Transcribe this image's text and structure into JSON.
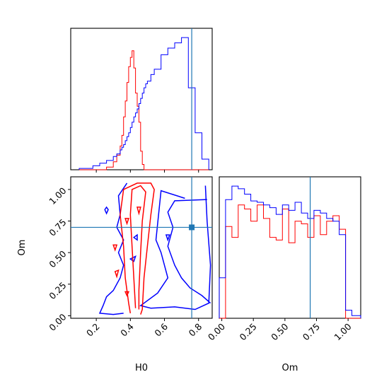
{
  "chart_data": {
    "type": "corner",
    "parameters": [
      "H0",
      "Om"
    ],
    "colors": {
      "blue_sample": "#0000ff",
      "red_sample": "#ff0000",
      "truth": "#1f77b4"
    },
    "truth": {
      "H0": 0.76,
      "Om": 0.7
    },
    "axes": {
      "H0": {
        "range": [
          0.05,
          0.88
        ],
        "ticks": [
          0.2,
          0.4,
          0.6,
          0.8
        ],
        "tick_labels": [
          "0.2",
          "0.4",
          "0.6",
          "0.8"
        ]
      },
      "Om": {
        "range": [
          -0.02,
          1.1
        ],
        "ticks": [
          0.0,
          0.25,
          0.5,
          0.75,
          1.0
        ],
        "tick_labels": [
          "0.00",
          "0.25",
          "0.50",
          "0.75",
          "1.00"
        ]
      }
    },
    "xlabel_H0": "H0",
    "xlabel_Om": "Om",
    "ylabel_Om": "Om",
    "hist_H0": {
      "edges": [
        0.1,
        0.14,
        0.18,
        0.22,
        0.26,
        0.3,
        0.32,
        0.34,
        0.35,
        0.36,
        0.37,
        0.38,
        0.39,
        0.4,
        0.41,
        0.42,
        0.43,
        0.44,
        0.45,
        0.46,
        0.47,
        0.48,
        0.49,
        0.5,
        0.52,
        0.54,
        0.58,
        0.62,
        0.66,
        0.7,
        0.74,
        0.78,
        0.82,
        0.86
      ],
      "blue": [
        0.01,
        0.01,
        0.03,
        0.05,
        0.07,
        0.1,
        0.12,
        0.15,
        0.17,
        0.19,
        0.22,
        0.25,
        0.28,
        0.32,
        0.36,
        0.4,
        0.43,
        0.46,
        0.5,
        0.54,
        0.58,
        0.62,
        0.65,
        0.67,
        0.72,
        0.76,
        0.87,
        0.92,
        0.96,
        1.0,
        0.62,
        0.28,
        0.08
      ],
      "red": [
        0,
        0,
        0,
        0,
        0.02,
        0.06,
        0.11,
        0.18,
        0.26,
        0.4,
        0.52,
        0.66,
        0.78,
        0.85,
        0.9,
        0.77,
        0.58,
        0.48,
        0.36,
        0.14,
        0.04,
        0,
        0,
        0,
        0,
        0,
        0,
        0,
        0,
        0,
        0,
        0,
        0
      ]
    },
    "hist_Om": {
      "edges": [
        -0.02,
        0.03,
        0.08,
        0.13,
        0.18,
        0.23,
        0.28,
        0.33,
        0.38,
        0.43,
        0.48,
        0.53,
        0.58,
        0.63,
        0.68,
        0.73,
        0.78,
        0.83,
        0.88,
        0.93,
        0.98,
        1.03,
        1.1
      ],
      "blue": [
        0.3,
        0.88,
        0.98,
        0.96,
        0.92,
        0.87,
        0.86,
        0.84,
        0.82,
        0.77,
        0.84,
        0.8,
        0.86,
        0.78,
        0.74,
        0.8,
        0.78,
        0.74,
        0.72,
        0.62,
        0.06,
        0.02
      ],
      "red": [
        0,
        0.68,
        0.6,
        0.84,
        0.81,
        0.72,
        0.84,
        0.74,
        0.6,
        0.58,
        0.81,
        0.56,
        0.72,
        0.7,
        0.6,
        0.76,
        0.62,
        0.72,
        0.76,
        0.66,
        0,
        0
      ]
    },
    "contours": [
      {
        "series": "blue",
        "level": "outer",
        "points": [
          [
            0.72,
            0.93
          ],
          [
            0.58,
            0.99
          ],
          [
            0.55,
            0.6
          ],
          [
            0.58,
            0.5
          ],
          [
            0.62,
            0.3
          ],
          [
            0.56,
            0.18
          ],
          [
            0.46,
            0.08
          ],
          [
            0.52,
            0.06
          ],
          [
            0.66,
            0.07
          ],
          [
            0.78,
            0.05
          ],
          [
            0.86,
            0.1
          ],
          [
            0.87,
            0.4
          ],
          [
            0.85,
            0.75
          ],
          [
            0.84,
            1.03
          ]
        ],
        "closed": false
      },
      {
        "series": "blue",
        "level": "inner",
        "points": [
          [
            0.85,
            0.92
          ],
          [
            0.66,
            0.91
          ],
          [
            0.62,
            0.82
          ],
          [
            0.65,
            0.7
          ],
          [
            0.62,
            0.55
          ],
          [
            0.66,
            0.4
          ],
          [
            0.7,
            0.3
          ],
          [
            0.75,
            0.22
          ],
          [
            0.82,
            0.16
          ],
          [
            0.87,
            0.1
          ]
        ],
        "closed": false
      },
      {
        "series": "blue",
        "level": "outer",
        "points": [
          [
            0.38,
            1.05
          ],
          [
            0.33,
            0.95
          ],
          [
            0.34,
            0.8
          ],
          [
            0.32,
            0.7
          ],
          [
            0.36,
            0.6
          ],
          [
            0.33,
            0.5
          ],
          [
            0.36,
            0.4
          ],
          [
            0.34,
            0.3
          ],
          [
            0.3,
            0.2
          ],
          [
            0.26,
            0.15
          ],
          [
            0.24,
            0.08
          ],
          [
            0.22,
            0.02
          ],
          [
            0.3,
            0.01
          ],
          [
            0.36,
            0.02
          ]
        ],
        "closed": false
      },
      {
        "series": "blue",
        "level": "island",
        "points": [
          [
            0.25,
            0.84
          ],
          [
            0.26,
            0.81
          ],
          [
            0.27,
            0.84
          ],
          [
            0.26,
            0.86
          ]
        ],
        "closed": true
      },
      {
        "series": "blue",
        "level": "island",
        "points": [
          [
            0.42,
            0.62
          ],
          [
            0.44,
            0.6
          ],
          [
            0.44,
            0.64
          ]
        ],
        "closed": true
      },
      {
        "series": "blue",
        "level": "island",
        "points": [
          [
            0.4,
            0.45
          ],
          [
            0.42,
            0.43
          ],
          [
            0.43,
            0.47
          ]
        ],
        "closed": true
      },
      {
        "series": "blue",
        "level": "island",
        "points": [
          [
            0.61,
            0.64
          ],
          [
            0.62,
            0.6
          ],
          [
            0.63,
            0.64
          ]
        ],
        "closed": true
      },
      {
        "series": "red",
        "level": "outer",
        "points": [
          [
            0.4,
            0.02
          ],
          [
            0.39,
            0.1
          ],
          [
            0.37,
            0.3
          ],
          [
            0.36,
            0.55
          ],
          [
            0.34,
            0.8
          ],
          [
            0.36,
            1.0
          ],
          [
            0.44,
            1.05
          ],
          [
            0.52,
            1.05
          ],
          [
            0.54,
            1.0
          ],
          [
            0.52,
            0.8
          ],
          [
            0.5,
            0.55
          ],
          [
            0.48,
            0.3
          ],
          [
            0.47,
            0.05
          ],
          [
            0.46,
            0.01
          ]
        ],
        "closed": false
      },
      {
        "series": "red",
        "level": "inner",
        "points": [
          [
            0.43,
            0.06
          ],
          [
            0.42,
            0.3
          ],
          [
            0.41,
            0.55
          ],
          [
            0.4,
            0.8
          ],
          [
            0.41,
            1.0
          ],
          [
            0.46,
            1.03
          ],
          [
            0.49,
            0.98
          ],
          [
            0.47,
            0.75
          ],
          [
            0.46,
            0.5
          ],
          [
            0.45,
            0.2
          ],
          [
            0.45,
            0.05
          ]
        ],
        "closed": false
      },
      {
        "series": "red",
        "level": "island",
        "points": [
          [
            0.3,
            0.56
          ],
          [
            0.31,
            0.52
          ],
          [
            0.32,
            0.56
          ]
        ],
        "closed": true
      },
      {
        "series": "red",
        "level": "island",
        "points": [
          [
            0.31,
            0.35
          ],
          [
            0.32,
            0.31
          ],
          [
            0.33,
            0.36
          ]
        ],
        "closed": true
      },
      {
        "series": "red",
        "level": "island",
        "points": [
          [
            0.37,
            0.77
          ],
          [
            0.38,
            0.73
          ],
          [
            0.39,
            0.77
          ]
        ],
        "closed": true
      },
      {
        "series": "red",
        "level": "island",
        "points": [
          [
            0.37,
            0.19
          ],
          [
            0.38,
            0.16
          ],
          [
            0.39,
            0.19
          ]
        ],
        "closed": true
      },
      {
        "series": "red",
        "level": "island",
        "points": [
          [
            0.44,
            0.86
          ],
          [
            0.45,
            0.81
          ],
          [
            0.46,
            0.86
          ]
        ],
        "closed": true
      }
    ]
  }
}
